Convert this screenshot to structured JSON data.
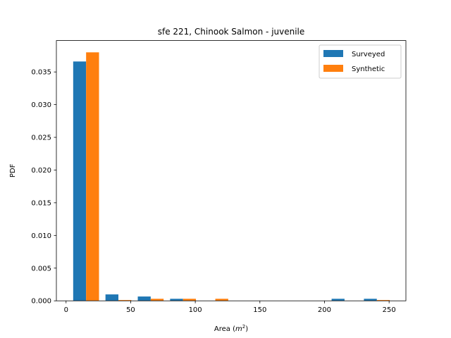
{
  "chart_data": {
    "type": "bar",
    "title": "sfe 221, Chinook Salmon - juvenile",
    "xlabel": "Area (",
    "xlabel_unit_base": "m",
    "xlabel_unit_exp": "2",
    "xlabel_close": ")",
    "ylabel": "PDF",
    "xlim": [
      -7.5,
      263
    ],
    "ylim": [
      0,
      0.0398
    ],
    "xticks": [
      0,
      50,
      100,
      150,
      200,
      250
    ],
    "xtick_labels": [
      "0",
      "50",
      "100",
      "150",
      "200",
      "250"
    ],
    "yticks": [
      0.0,
      0.005,
      0.01,
      0.015,
      0.02,
      0.025,
      0.03,
      0.035
    ],
    "ytick_labels": [
      "0.000",
      "0.005",
      "0.010",
      "0.015",
      "0.020",
      "0.025",
      "0.030",
      "0.035"
    ],
    "bin_edges": [
      3,
      28,
      53,
      78,
      103,
      128,
      153,
      178,
      203,
      228,
      253
    ],
    "legend_position": "upper right",
    "grid": false,
    "series": [
      {
        "name": "Surveyed",
        "color": "#1f77b4",
        "values": [
          0.0366,
          0.00098,
          0.00066,
          0.00031,
          0.0,
          0.0,
          0.0,
          0.0,
          0.00031,
          0.00031
        ]
      },
      {
        "name": "Synthetic",
        "color": "#ff7f0e",
        "values": [
          0.038,
          0.00012,
          0.00031,
          0.00031,
          0.00031,
          0.0,
          0.0,
          0.0,
          0.0,
          0.00012
        ]
      }
    ]
  }
}
